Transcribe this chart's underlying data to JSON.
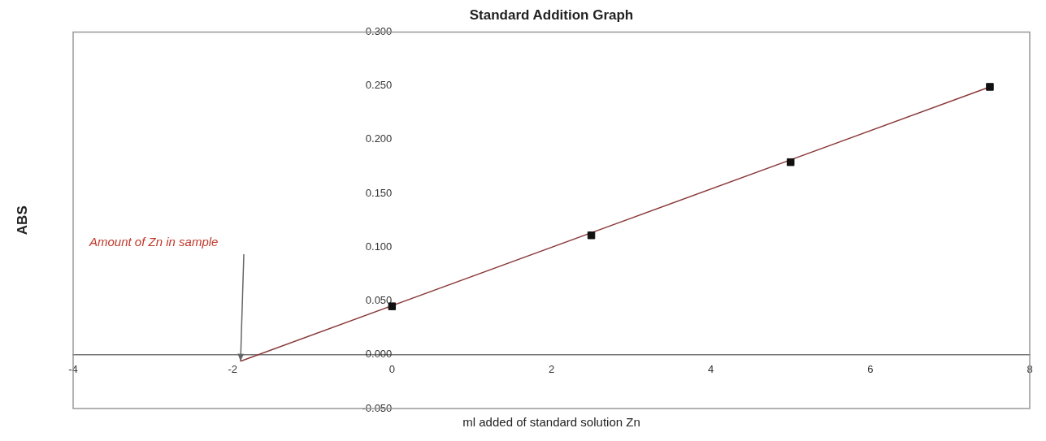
{
  "chart_data": {
    "type": "scatter",
    "title": "Standard Addition Graph",
    "xlabel": "ml added of standard solution Zn",
    "ylabel": "ABS",
    "x": [
      0,
      2.5,
      5,
      7.5
    ],
    "series": [
      {
        "color": "#111111",
        "marker": "square",
        "values": [
          0.045,
          0.111,
          0.179,
          0.249
        ]
      },
      {
        "type": "line",
        "color": "#8b3a3a",
        "marker": "none",
        "x": [
          -1.9,
          7.5
        ],
        "values": [
          -0.006,
          0.249
        ]
      }
    ],
    "annotations": [
      "Amount of Zn in sample"
    ],
    "xlim": [
      -4,
      8
    ],
    "xticks": [
      -4,
      -2,
      0,
      2,
      4,
      6,
      8
    ],
    "ylim": [
      -0.05,
      0.3
    ],
    "yticks": [
      {
        "value": -0.05,
        "label": "-0.050"
      },
      {
        "value": 0,
        "label": "0.000"
      },
      {
        "value": 0.05,
        "label": "0.050"
      },
      {
        "value": 0.1,
        "label": "0.100"
      },
      {
        "value": 0.15,
        "label": "0.150"
      },
      {
        "value": 0.2,
        "label": "0.200"
      },
      {
        "value": 0.25,
        "label": "0.250"
      },
      {
        "value": 0.3,
        "label": "0.300"
      }
    ],
    "legend": false
  }
}
